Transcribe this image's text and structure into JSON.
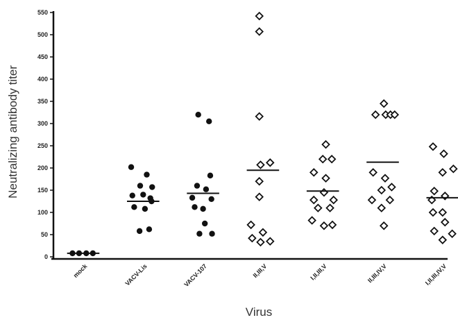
{
  "chart_data": {
    "type": "scatter",
    "xlabel": "Virus",
    "ylabel": "Neutralizing antibody titer",
    "ylim": [
      0,
      550
    ],
    "yticks": [
      0,
      50,
      100,
      150,
      200,
      250,
      300,
      350,
      400,
      450,
      500,
      550
    ],
    "grid": false,
    "categories": [
      "mock",
      "VACV-Lis",
      "VACV-107",
      "II,III,V",
      "I,II,III,V",
      "II,III,IV,V",
      "I,II,III,IV,V"
    ],
    "marker_colors": {
      "filled": "#111111",
      "open": "#111111"
    },
    "series": [
      {
        "category": "mock",
        "marker": "filled-circle",
        "mean": 8,
        "points": [
          [
            -0.18,
            8
          ],
          [
            -0.07,
            8
          ],
          [
            0.05,
            8
          ],
          [
            0.16,
            8
          ]
        ]
      },
      {
        "category": "VACV-Lis",
        "marker": "filled-circle",
        "mean": 125,
        "points": [
          [
            -0.2,
            202
          ],
          [
            0.06,
            185
          ],
          [
            -0.05,
            160
          ],
          [
            0.15,
            157
          ],
          [
            -0.18,
            138
          ],
          [
            0.0,
            140
          ],
          [
            0.12,
            132
          ],
          [
            0.14,
            125
          ],
          [
            -0.15,
            112
          ],
          [
            0.03,
            108
          ],
          [
            -0.06,
            58
          ],
          [
            0.1,
            62
          ]
        ]
      },
      {
        "category": "VACV-107",
        "marker": "filled-circle",
        "mean": 143,
        "points": [
          [
            -0.08,
            320
          ],
          [
            0.1,
            305
          ],
          [
            0.12,
            183
          ],
          [
            -0.1,
            160
          ],
          [
            0.05,
            152
          ],
          [
            -0.18,
            133
          ],
          [
            0.14,
            130
          ],
          [
            -0.14,
            112
          ],
          [
            0.0,
            108
          ],
          [
            0.03,
            75
          ],
          [
            -0.06,
            52
          ],
          [
            0.15,
            52
          ]
        ]
      },
      {
        "category": "II,III,V",
        "marker": "open-diamond",
        "mean": 195,
        "points": [
          [
            -0.06,
            542
          ],
          [
            -0.06,
            507
          ],
          [
            -0.06,
            316
          ],
          [
            0.12,
            212
          ],
          [
            -0.04,
            207
          ],
          [
            -0.06,
            170
          ],
          [
            -0.06,
            135
          ],
          [
            -0.2,
            72
          ],
          [
            0.0,
            55
          ],
          [
            -0.18,
            42
          ],
          [
            -0.04,
            33
          ],
          [
            0.12,
            35
          ]
        ]
      },
      {
        "category": "I,II,III,V",
        "marker": "open-diamond",
        "mean": 148,
        "points": [
          [
            0.05,
            253
          ],
          [
            0.0,
            220
          ],
          [
            0.15,
            220
          ],
          [
            -0.15,
            190
          ],
          [
            0.05,
            177
          ],
          [
            0.02,
            145
          ],
          [
            -0.15,
            128
          ],
          [
            0.18,
            128
          ],
          [
            -0.08,
            110
          ],
          [
            0.12,
            110
          ],
          [
            -0.18,
            82
          ],
          [
            0.02,
            70
          ],
          [
            0.16,
            72
          ]
        ]
      },
      {
        "category": "II,III,IV,V",
        "marker": "open-diamond",
        "mean": 213,
        "points": [
          [
            0.02,
            345
          ],
          [
            -0.12,
            320
          ],
          [
            0.05,
            320
          ],
          [
            0.13,
            320
          ],
          [
            0.2,
            320
          ],
          [
            -0.16,
            190
          ],
          [
            0.04,
            177
          ],
          [
            0.15,
            157
          ],
          [
            -0.02,
            150
          ],
          [
            -0.18,
            128
          ],
          [
            0.12,
            128
          ],
          [
            -0.02,
            110
          ],
          [
            0.02,
            70
          ]
        ]
      },
      {
        "category": "I,II,III,IV,V",
        "marker": "open-diamond",
        "mean": 133,
        "points": [
          [
            -0.16,
            248
          ],
          [
            0.02,
            232
          ],
          [
            0.18,
            198
          ],
          [
            0.0,
            190
          ],
          [
            -0.14,
            148
          ],
          [
            0.04,
            137
          ],
          [
            -0.18,
            128
          ],
          [
            0.0,
            100
          ],
          [
            -0.16,
            100
          ],
          [
            0.04,
            78
          ],
          [
            -0.14,
            58
          ],
          [
            0.16,
            52
          ],
          [
            0.0,
            38
          ]
        ]
      }
    ]
  }
}
